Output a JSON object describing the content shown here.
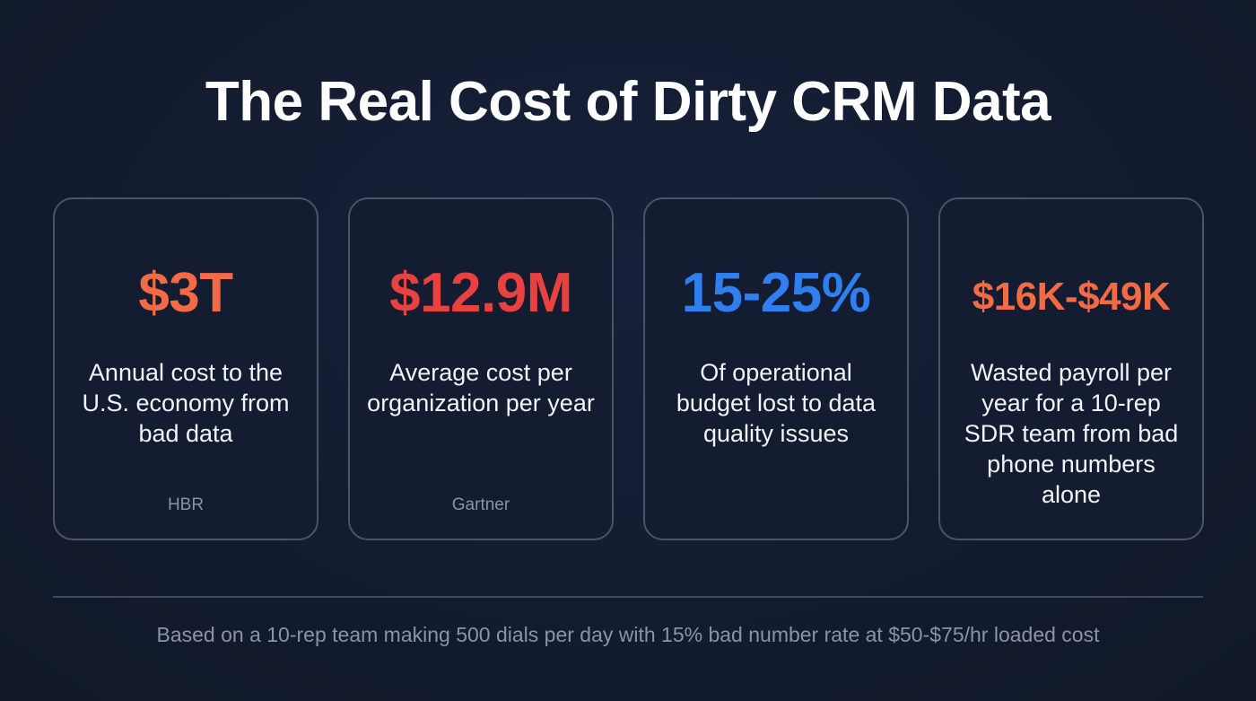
{
  "title": "The Real Cost of Dirty CRM Data",
  "colors": {
    "background": "#131c30",
    "card_border": "#4a5568",
    "orange": "#f26b45",
    "red": "#e8413f",
    "blue": "#2f7ff0",
    "muted_text": "#8a94a6"
  },
  "cards": [
    {
      "stat": "$3T",
      "stat_color": "#f26b45",
      "description": "Annual cost to the U.S. economy from bad data",
      "source": "HBR"
    },
    {
      "stat": "$12.9M",
      "stat_color": "#e8413f",
      "description": "Average cost per organization per year",
      "source": "Gartner"
    },
    {
      "stat": "15-25%",
      "stat_color": "#2f7ff0",
      "description": "Of operational budget lost to data quality issues",
      "source": ""
    },
    {
      "stat": "$16K-$49K",
      "stat_color": "#f26b45",
      "description": "Wasted payroll per year for a 10-rep SDR team from bad phone numbers alone",
      "source": ""
    }
  ],
  "footnote": "Based on a 10-rep team making 500 dials per day with 15% bad number rate at $50-$75/hr loaded cost"
}
